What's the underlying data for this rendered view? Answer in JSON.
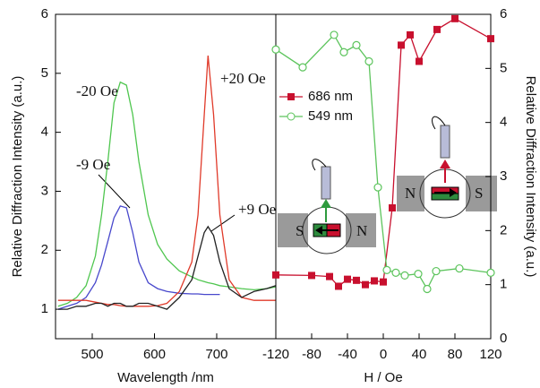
{
  "chart_data": [
    {
      "type": "line",
      "xlabel": "Wavelength /nm",
      "ylabel": "Relative Diffraction Intensity (a.u.)",
      "xlim": [
        441,
        795
      ],
      "xticks": [
        500,
        600,
        700
      ],
      "ylim": [
        0.5,
        6
      ],
      "yticks": [
        1,
        2,
        3,
        4,
        5,
        6
      ],
      "x": [
        445,
        460,
        475,
        490,
        505,
        515,
        525,
        535,
        545,
        555,
        565,
        575,
        590,
        605,
        620,
        640,
        660,
        670,
        680,
        686,
        695,
        705,
        720,
        740,
        760,
        780,
        795
      ],
      "series": [
        {
          "name": "-20 Oe",
          "color": "#4fc64f",
          "values": [
            1.05,
            1.1,
            1.2,
            1.4,
            1.9,
            2.6,
            3.5,
            4.5,
            4.85,
            4.8,
            4.3,
            3.5,
            2.6,
            2.1,
            1.85,
            1.65,
            1.55,
            1.5,
            1.47,
            1.45,
            1.43,
            1.4,
            1.38,
            1.35,
            1.33,
            1.35,
            1.38
          ]
        },
        {
          "name": "-9 Oe",
          "color": "#4848cc",
          "values": [
            1.0,
            1.05,
            1.1,
            1.2,
            1.45,
            1.75,
            2.15,
            2.55,
            2.75,
            2.72,
            2.3,
            1.8,
            1.45,
            1.35,
            1.3,
            1.27,
            1.26,
            1.26,
            1.25,
            1.25,
            1.25,
            1.25,
            null,
            null,
            null,
            null,
            null
          ]
        },
        {
          "name": "+20 Oe",
          "color": "#e03a2a",
          "values": [
            1.15,
            1.15,
            1.15,
            1.15,
            1.12,
            1.1,
            1.08,
            1.08,
            1.06,
            1.05,
            1.05,
            1.05,
            1.05,
            1.06,
            1.1,
            1.3,
            1.8,
            2.6,
            4.3,
            5.3,
            4.3,
            2.6,
            1.5,
            1.2,
            1.15,
            1.15,
            1.15
          ]
        },
        {
          "name": "+9 Oe",
          "color": "#222222",
          "values": [
            1.0,
            1.0,
            1.05,
            1.05,
            1.1,
            1.1,
            1.05,
            1.1,
            1.1,
            1.05,
            1.05,
            1.1,
            1.1,
            1.05,
            1.0,
            1.2,
            1.5,
            1.9,
            2.3,
            2.4,
            2.25,
            1.8,
            1.35,
            1.2,
            1.3,
            1.35,
            1.4
          ]
        }
      ]
    },
    {
      "type": "line",
      "xlabel": "H / Oe",
      "ylabel": "Relative Diffraction Intensity (a.u.)",
      "xlim": [
        -120,
        120
      ],
      "xticks": [
        -120,
        -80,
        -40,
        0,
        40,
        80,
        120
      ],
      "ylim": [
        0,
        6
      ],
      "yticks": [
        0,
        1,
        2,
        3,
        4,
        5,
        6
      ],
      "series": [
        {
          "name": "686 nm",
          "color": "#c8102e",
          "marker": "square",
          "x": [
            -120,
            -80,
            -60,
            -50,
            -40,
            -30,
            -20,
            -10,
            0,
            10,
            20,
            30,
            40,
            60,
            80,
            120
          ],
          "values": [
            1.18,
            1.17,
            1.15,
            0.97,
            1.1,
            1.08,
            1.0,
            1.07,
            1.05,
            2.42,
            5.43,
            5.62,
            5.13,
            5.72,
            5.92,
            5.55
          ]
        },
        {
          "name": "549 nm",
          "color": "#5cc45c",
          "marker": "circle",
          "x": [
            -120,
            -90,
            -55,
            -44,
            -30,
            -16,
            -6,
            4,
            14,
            24,
            39,
            49,
            59,
            85,
            120
          ],
          "values": [
            5.35,
            5.02,
            5.62,
            5.3,
            5.43,
            5.13,
            2.8,
            1.27,
            1.22,
            1.17,
            1.2,
            0.92,
            1.25,
            1.3,
            1.22
          ]
        }
      ],
      "inset_labels": [
        "S",
        "N",
        "N",
        "S"
      ]
    }
  ]
}
